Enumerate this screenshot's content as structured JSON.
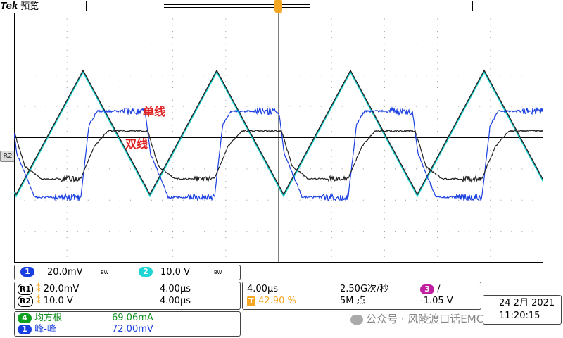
{
  "header": {
    "brand": "Tek",
    "mode": "预览"
  },
  "trigger_marker": "T",
  "ref_tag": "R2",
  "annotations": {
    "single_wire": "单线",
    "double_wire": "双线"
  },
  "channels_row": {
    "ch1": {
      "num": "1",
      "scale": "20.0mV",
      "bw": "BW"
    },
    "ch2": {
      "num": "2",
      "scale": "10.0 V",
      "bw": "BW"
    }
  },
  "references": [
    {
      "label": "R1",
      "scale": "20.0mV",
      "time": "4.00µs"
    },
    {
      "label": "R2",
      "scale": "10.0 V",
      "time": "4.00µs"
    }
  ],
  "timebase": {
    "horizontal": "4.00µs",
    "sample_rate": "2.50G次/秒",
    "trigger_pos": "42.90 %",
    "record": "5M 点",
    "trigger_ch": "3",
    "trigger_slope": "∕",
    "trigger_level": "-1.05 V"
  },
  "measurements": [
    {
      "ch": "4",
      "name": "均方根",
      "value": "69.06mA"
    },
    {
      "ch": "1",
      "name": "峰-峰",
      "value": "72.00mV"
    }
  ],
  "datetime": {
    "date": "24 2月 2021",
    "time": "11:20:15"
  },
  "watermark": "公众号 · 风陵渡口话EMC",
  "colors": {
    "ch1": "#1a3fe0",
    "ch2": "#1ed6d6",
    "ref": "#222222",
    "trigger": "#f5a623",
    "annotation": "#e02020"
  }
}
